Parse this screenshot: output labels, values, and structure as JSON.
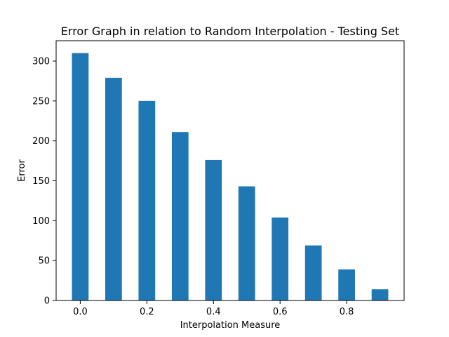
{
  "chart_data": {
    "type": "bar",
    "title": "Error Graph in relation to Random Interpolation - Testing Set",
    "xlabel": "Interpolation Measure",
    "ylabel": "Error",
    "x": [
      0.0,
      0.1,
      0.2,
      0.3,
      0.4,
      0.5,
      0.6,
      0.7,
      0.8,
      0.9
    ],
    "values": [
      310,
      279,
      250,
      211,
      176,
      143,
      104,
      69,
      39,
      14
    ],
    "bar_width": 0.05,
    "xlim": [
      -0.0725,
      0.9725
    ],
    "ylim": [
      0,
      325.5
    ],
    "xticks": [
      0.0,
      0.2,
      0.4,
      0.6,
      0.8
    ],
    "xtick_labels": [
      "0.0",
      "0.2",
      "0.4",
      "0.6",
      "0.8"
    ],
    "yticks": [
      0,
      50,
      100,
      150,
      200,
      250,
      300
    ],
    "ytick_labels": [
      "0",
      "50",
      "100",
      "150",
      "200",
      "250",
      "300"
    ],
    "bar_color": "#1f77b4",
    "grid": false,
    "legend": "none"
  }
}
